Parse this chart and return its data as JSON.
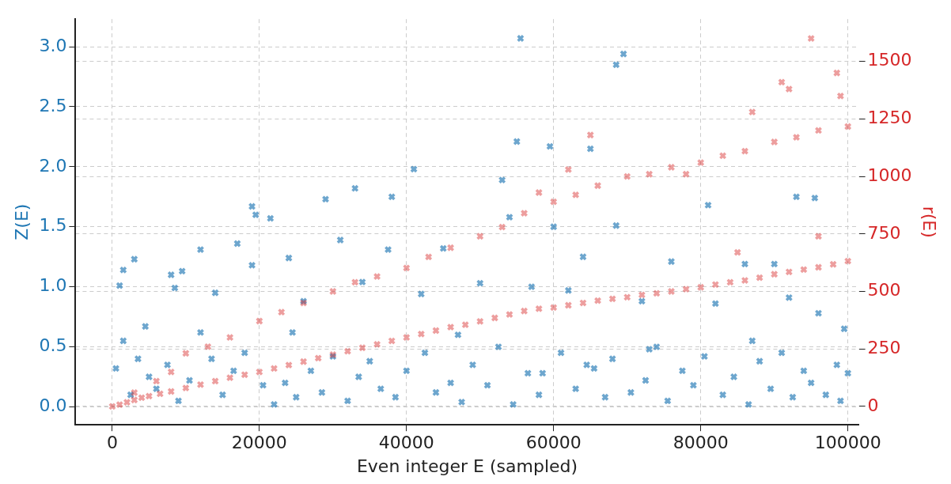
{
  "chart_data": {
    "type": "scatter",
    "xlabel": "Even integer E (sampled)",
    "ylabel": "Z(E)",
    "y2label": "r(E)",
    "xlim": [
      -5000,
      101500
    ],
    "xticks": [
      0,
      20000,
      40000,
      60000,
      80000,
      100000
    ],
    "ylim": [
      -0.15,
      3.23
    ],
    "yticks": [
      {
        "value": 0,
        "label": "0.0"
      },
      0.5,
      {
        "value": 1,
        "label": "1.0"
      },
      1.5,
      {
        "value": 2,
        "label": "2.0"
      },
      2.5,
      {
        "value": 3,
        "label": "3.0"
      }
    ],
    "y2lim": [
      -80,
      1684
    ],
    "y2ticks": [
      0,
      250,
      500,
      750,
      1000,
      1250,
      1500
    ],
    "grid": true,
    "marker": "cross",
    "series": [
      {
        "color": "#1f77b4",
        "x": [
          55500,
          69500,
          68500,
          55000,
          59500,
          65000,
          41000,
          53000,
          19000,
          21500,
          19500,
          33000,
          29000,
          38000,
          81000,
          93000,
          95500,
          54000,
          60000,
          68500,
          17000,
          31000,
          12000,
          3000,
          1500,
          9500,
          8000,
          24000,
          37500,
          45000,
          64000,
          76000,
          86000,
          90000,
          1000,
          8500,
          4500,
          14000,
          19000,
          26000,
          34000,
          42000,
          50000,
          57000,
          62000,
          72000,
          82000,
          92000,
          96000,
          99500,
          100000,
          500,
          1500,
          2500,
          3500,
          5000,
          6000,
          7500,
          9000,
          10500,
          12000,
          13500,
          15000,
          16500,
          18000,
          20500,
          22000,
          23500,
          25000,
          27000,
          28500,
          30000,
          32000,
          33500,
          35000,
          36500,
          38500,
          40000,
          42500,
          44000,
          46000,
          47500,
          49000,
          51000,
          52500,
          54500,
          56500,
          58000,
          61000,
          63000,
          65500,
          67000,
          68000,
          70500,
          72500,
          74000,
          75500,
          77500,
          79000,
          80500,
          83000,
          84500,
          86500,
          88000,
          89500,
          91000,
          92500,
          94000,
          95000,
          97000,
          98500,
          99000,
          47000,
          58500,
          73000,
          87000,
          24500,
          64500
        ],
        "values": [
          3.07,
          2.94,
          2.85,
          2.21,
          2.17,
          2.15,
          1.98,
          1.89,
          1.67,
          1.57,
          1.6,
          1.82,
          1.73,
          1.75,
          1.68,
          1.75,
          1.74,
          1.58,
          1.5,
          1.51,
          1.36,
          1.39,
          1.31,
          1.23,
          1.14,
          1.13,
          1.1,
          1.24,
          1.31,
          1.32,
          1.25,
          1.21,
          1.19,
          1.19,
          1.01,
          0.99,
          0.67,
          0.95,
          1.18,
          0.88,
          1.04,
          0.94,
          1.03,
          1.0,
          0.97,
          0.88,
          0.86,
          0.91,
          0.78,
          0.65,
          0.28,
          0.32,
          0.55,
          0.1,
          0.4,
          0.25,
          0.15,
          0.35,
          0.05,
          0.22,
          0.62,
          0.4,
          0.1,
          0.3,
          0.45,
          0.18,
          0.02,
          0.2,
          0.08,
          0.3,
          0.12,
          0.42,
          0.05,
          0.25,
          0.38,
          0.15,
          0.08,
          0.3,
          0.45,
          0.12,
          0.2,
          0.04,
          0.35,
          0.18,
          0.5,
          0.02,
          0.28,
          0.1,
          0.45,
          0.15,
          0.32,
          0.08,
          0.4,
          0.12,
          0.22,
          0.5,
          0.05,
          0.3,
          0.18,
          0.42,
          0.1,
          0.25,
          0.02,
          0.38,
          0.15,
          0.45,
          0.08,
          0.3,
          0.2,
          0.1,
          0.35,
          0.05,
          0.6,
          0.28,
          0.48,
          0.55,
          0.62,
          0.35
        ]
      },
      {
        "axis": "y2",
        "color": "#d62728",
        "x": [
          0,
          1000,
          2000,
          3000,
          4000,
          5000,
          6500,
          8000,
          10000,
          12000,
          14000,
          16000,
          18000,
          20000,
          22000,
          24000,
          26000,
          28000,
          30000,
          32000,
          34000,
          36000,
          38000,
          40000,
          42000,
          44000,
          46000,
          48000,
          50000,
          52000,
          54000,
          56000,
          58000,
          60000,
          62000,
          64000,
          66000,
          68000,
          70000,
          72000,
          74000,
          76000,
          78000,
          80000,
          82000,
          84000,
          86000,
          88000,
          90000,
          92000,
          94000,
          96000,
          98000,
          100000,
          3000,
          6000,
          8000,
          10000,
          13000,
          16000,
          20000,
          23000,
          26000,
          30000,
          33000,
          36000,
          40000,
          43000,
          46000,
          50000,
          53000,
          56000,
          60000,
          63000,
          66000,
          70000,
          73000,
          76000,
          80000,
          83000,
          86000,
          90000,
          93000,
          96000,
          100000,
          95000,
          91000,
          92000,
          99000,
          98500,
          78000,
          87000,
          62000,
          58000,
          96000,
          65000,
          85000
        ],
        "values": [
          0,
          8,
          18,
          28,
          38,
          45,
          55,
          65,
          80,
          95,
          110,
          125,
          138,
          150,
          165,
          180,
          195,
          210,
          225,
          240,
          255,
          270,
          285,
          300,
          315,
          330,
          345,
          355,
          370,
          385,
          400,
          415,
          425,
          430,
          440,
          450,
          460,
          468,
          475,
          485,
          492,
          500,
          510,
          518,
          530,
          540,
          548,
          560,
          575,
          585,
          595,
          605,
          618,
          632,
          60,
          110,
          150,
          231,
          260,
          300,
          371,
          410,
          450,
          500,
          540,
          565,
          602,
          650,
          690,
          740,
          780,
          840,
          890,
          920,
          960,
          1000,
          1010,
          1040,
          1060,
          1090,
          1110,
          1150,
          1170,
          1200,
          1217,
          1600,
          1410,
          1380,
          1350,
          1450,
          1010,
          1280,
          1030,
          930,
          740,
          1180,
          670
        ]
      }
    ]
  }
}
